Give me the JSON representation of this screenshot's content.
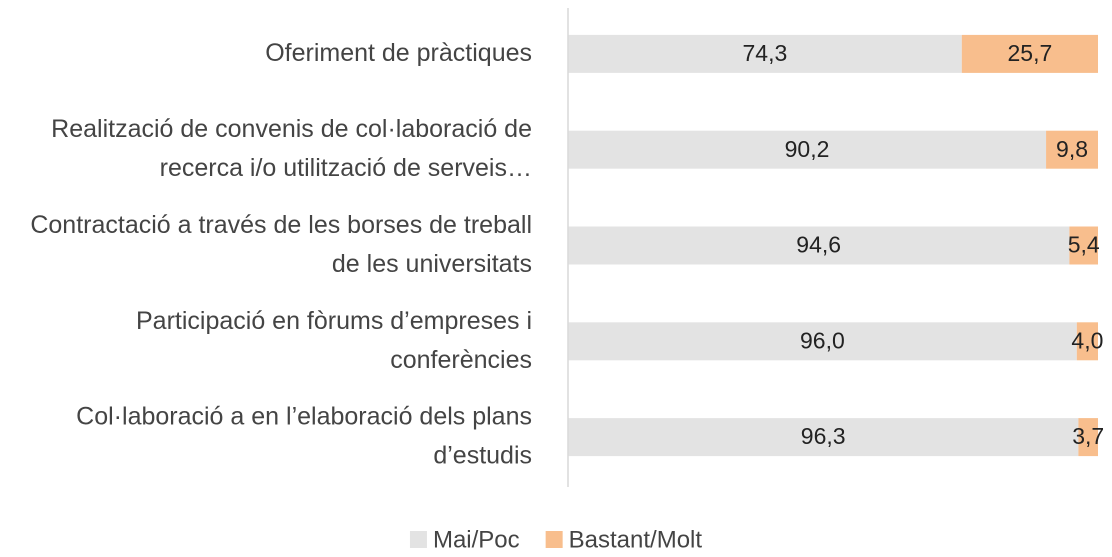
{
  "chart_data": {
    "type": "stacked_barh",
    "categories": [
      "Oferiment de pràctiques",
      "Realització de convenis de col·laboració de recerca i/o utilització de serveis…",
      "Contractació a través de les borses de treball de les universitats",
      "Participació en fòrums d’empreses i conferències",
      "Col·laboració a en l’elaboració dels plans d’estudis"
    ],
    "series": [
      {
        "name": "Mai/Poc",
        "color": "#e3e3e3",
        "values": [
          74.3,
          90.2,
          94.6,
          96.0,
          96.3
        ],
        "value_labels": [
          "74,3",
          "90,2",
          "94,6",
          "96,0",
          "96,3"
        ]
      },
      {
        "name": "Bastant/Molt",
        "color": "#f8be8d",
        "values": [
          25.7,
          9.8,
          5.4,
          4.0,
          3.7
        ],
        "value_labels": [
          "25,7",
          "9,8",
          "5,4",
          "4,0",
          "3,7"
        ]
      }
    ],
    "xlim": [
      0,
      100
    ],
    "legend": "bottom"
  }
}
